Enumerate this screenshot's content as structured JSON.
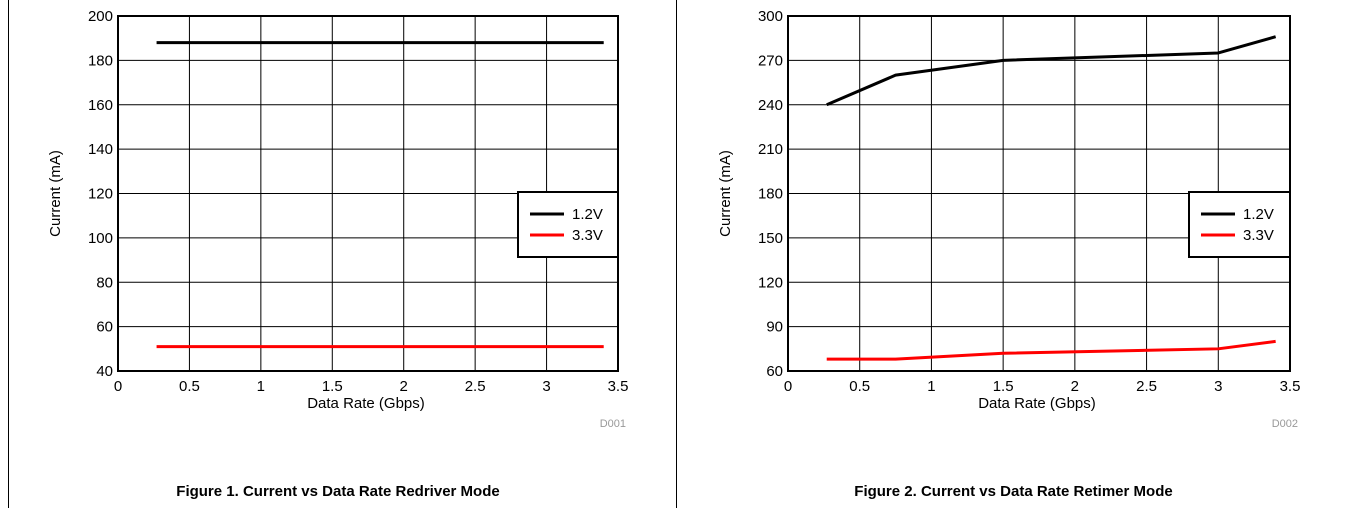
{
  "chart_data": [
    {
      "type": "line",
      "xlabel": "Data Rate (Gbps)",
      "ylabel": "Current (mA)",
      "xlim": [
        0,
        3.5
      ],
      "ylim": [
        40,
        200
      ],
      "xticks": [
        0,
        0.5,
        1,
        1.5,
        2,
        2.5,
        3,
        3.5
      ],
      "yticks": [
        40,
        60,
        80,
        100,
        120,
        140,
        160,
        180,
        200
      ],
      "grid": true,
      "legend_position": "right",
      "series": [
        {
          "name": "1.2V",
          "color": "#000000",
          "x": [
            0.27,
            0.75,
            1.5,
            3.0,
            3.4
          ],
          "y": [
            188,
            188,
            188,
            188,
            188
          ]
        },
        {
          "name": "3.3V",
          "color": "#ff0000",
          "x": [
            0.27,
            0.75,
            1.5,
            3.0,
            3.4
          ],
          "y": [
            51,
            51,
            51,
            51,
            51
          ]
        }
      ],
      "figure_id": "D001",
      "caption": "Figure 1. Current vs Data Rate Redriver Mode"
    },
    {
      "type": "line",
      "xlabel": "Data Rate (Gbps)",
      "ylabel": "Current (mA)",
      "xlim": [
        0,
        3.5
      ],
      "ylim": [
        60,
        300
      ],
      "xticks": [
        0,
        0.5,
        1,
        1.5,
        2,
        2.5,
        3,
        3.5
      ],
      "yticks": [
        60,
        90,
        120,
        150,
        180,
        210,
        240,
        270,
        300
      ],
      "grid": true,
      "legend_position": "right",
      "series": [
        {
          "name": "1.2V",
          "color": "#000000",
          "x": [
            0.27,
            0.75,
            1.5,
            3.0,
            3.4
          ],
          "y": [
            240,
            260,
            270,
            275,
            286
          ]
        },
        {
          "name": "3.3V",
          "color": "#ff0000",
          "x": [
            0.27,
            0.75,
            1.5,
            3.0,
            3.4
          ],
          "y": [
            68,
            68,
            72,
            75,
            80
          ]
        }
      ],
      "figure_id": "D002",
      "caption": "Figure 2. Current vs Data Rate Retimer Mode"
    }
  ]
}
